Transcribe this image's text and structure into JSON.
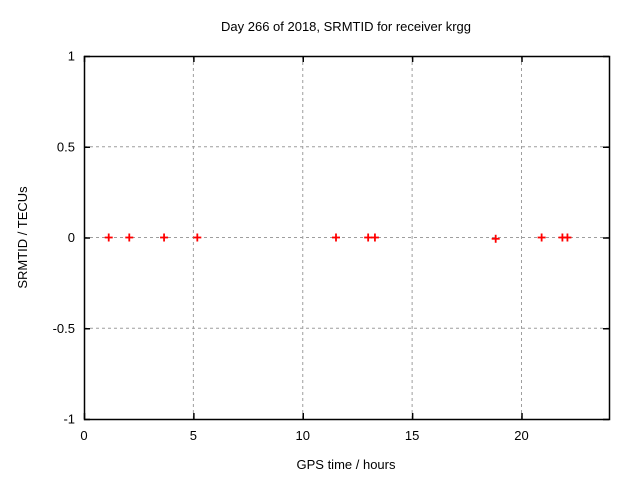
{
  "window": {
    "background": "#ffffff"
  },
  "chart_data": {
    "type": "scatter",
    "title": "Day 266 of 2018, SRMTID for receiver krgg",
    "xlabel": "GPS time / hours",
    "ylabel": "SRMTID / TECUs",
    "xlim": [
      0,
      24
    ],
    "ylim": [
      -1,
      1
    ],
    "xticks": [
      0,
      5,
      10,
      15,
      20
    ],
    "xtick_labels": [
      "0",
      "5",
      "10",
      "15",
      "20"
    ],
    "yticks": [
      1,
      0.5,
      0,
      -0.5,
      -1
    ],
    "ytick_labels": [
      "1",
      "0.5",
      "0",
      "-0.5",
      "-1"
    ],
    "grid": true,
    "legend": "none",
    "colors": {
      "axis": "#000000",
      "grid": "#9e9e9e",
      "marker": "#ff0000",
      "background": "#ffffff"
    },
    "marker": {
      "shape": "plus",
      "size": 4,
      "stroke_width": 1.8
    },
    "series": [
      {
        "name": "SRMTID",
        "x": [
          1.13,
          2.07,
          3.66,
          5.18,
          11.52,
          12.99,
          13.3,
          18.82,
          20.92,
          21.87,
          22.1
        ],
        "y": [
          0,
          0,
          0,
          0,
          0,
          0,
          0,
          -0.007,
          0,
          0,
          0
        ]
      }
    ]
  }
}
